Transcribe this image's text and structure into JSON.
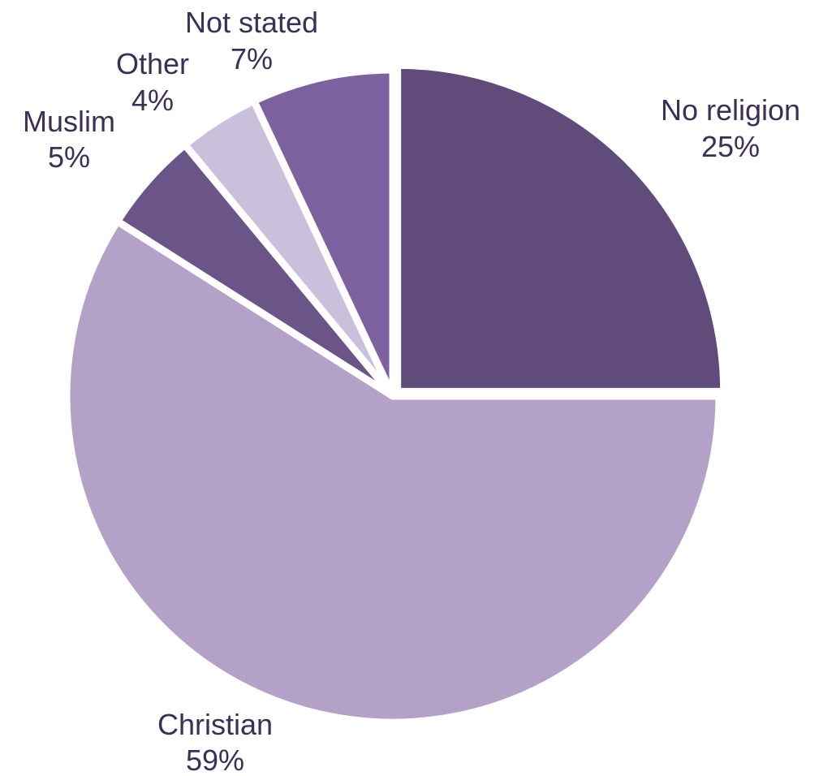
{
  "chart_data": {
    "type": "pie",
    "title": "",
    "colors": {
      "No religion": "#614b7b",
      "Christian": "#b3a1c7",
      "Muslim": "#6b5487",
      "Other": "#cac0db",
      "Not stated": "#7e62a0"
    },
    "slices": [
      {
        "label": "No religion",
        "value": 25,
        "value_label": "25%"
      },
      {
        "label": "Christian",
        "value": 59,
        "value_label": "59%"
      },
      {
        "label": "Muslim",
        "value": 5,
        "value_label": "5%"
      },
      {
        "label": "Other",
        "value": 4,
        "value_label": "4%"
      },
      {
        "label": "Not stated",
        "value": 7,
        "value_label": "7%"
      }
    ],
    "start_angle_deg": 0,
    "direction": "clockwise",
    "exploded_slice": "No religion",
    "legend": "none"
  }
}
